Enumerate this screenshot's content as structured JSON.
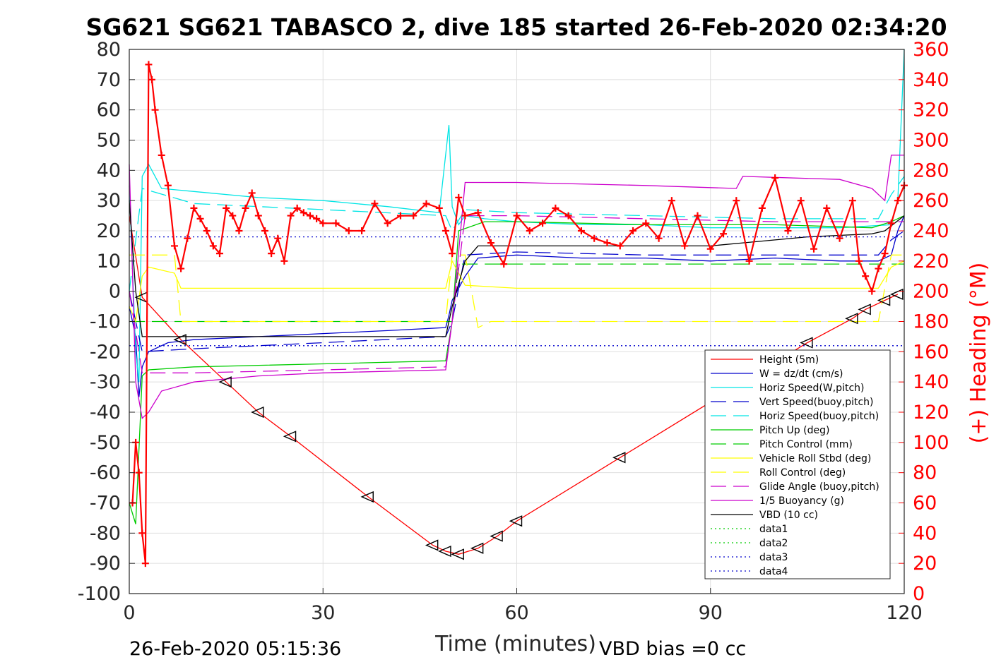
{
  "chart_data": {
    "type": "line",
    "title": "SG621 SG621 TABASCO 2, dive 185 started 26-Feb-2020 02:34:20",
    "xlabel": "Time (minutes)",
    "ylabel": "",
    "ylabel_right": "(+) Heading (°M)",
    "footer_left": "26-Feb-2020 05:15:36",
    "footer_right": "VBD bias =0 cc",
    "xlim": [
      0,
      120
    ],
    "ylim": [
      -100,
      80
    ],
    "ylim_right": [
      0,
      360
    ],
    "x_ticks": [
      "0",
      "30",
      "60",
      "90",
      "120"
    ],
    "y_ticks": [
      "80",
      "70",
      "60",
      "50",
      "40",
      "30",
      "20",
      "10",
      "0",
      "-10",
      "-20",
      "-30",
      "-40",
      "-50",
      "-60",
      "-70",
      "-80",
      "-90",
      "-100"
    ],
    "y_ticks_right": [
      "360",
      "340",
      "320",
      "300",
      "280",
      "260",
      "240",
      "220",
      "200",
      "180",
      "160",
      "140",
      "120",
      "100",
      "80",
      "60",
      "40",
      "20",
      "0"
    ],
    "grid": true,
    "legend_position": "bottom-right",
    "series": [
      {
        "name": "Height (5m)",
        "color": "#ff0000",
        "style": "solid",
        "x": [
          0,
          2,
          8,
          15,
          20,
          25,
          37,
          47,
          49,
          51,
          54,
          57,
          60,
          76,
          105,
          112,
          114,
          117,
          119
        ],
        "y": [
          25,
          -2,
          -16,
          -30,
          -40,
          -48,
          -68,
          -84,
          -86,
          -87,
          -85,
          -81,
          -76,
          -55,
          -17,
          -9,
          -6,
          -3,
          -1
        ]
      },
      {
        "name": "W = dz/dt (cm/s)",
        "color": "#0000cc",
        "style": "solid",
        "x": [
          0,
          1,
          1.5,
          2,
          3,
          6,
          10,
          20,
          30,
          40,
          49,
          49.5,
          50,
          52,
          54,
          60,
          70,
          80,
          90,
          100,
          110,
          116,
          118,
          119,
          120
        ],
        "y": [
          -5,
          -15,
          -35,
          -25,
          -20,
          -17,
          -16,
          -15,
          -14,
          -13,
          -12,
          -8,
          -3,
          5,
          11,
          12,
          11,
          11,
          10,
          11,
          10,
          10,
          12,
          20,
          25
        ]
      },
      {
        "name": "Horiz Speed(W,pitch)",
        "color": "#00e5e5",
        "style": "solid",
        "x": [
          0,
          1,
          1.5,
          2,
          3,
          5,
          10,
          20,
          30,
          40,
          48,
          49.5,
          50,
          51,
          52,
          55,
          60,
          70,
          80,
          90,
          100,
          110,
          118,
          119,
          120
        ],
        "y": [
          35,
          -20,
          -30,
          38,
          42,
          34,
          33,
          31,
          30,
          28,
          26,
          55,
          28,
          22,
          25,
          24,
          23,
          22,
          22,
          21,
          21,
          21,
          22,
          30,
          80
        ]
      },
      {
        "name": "Vert Speed(buoy,pitch)",
        "color": "#0000cc",
        "style": "dashed",
        "x": [
          0,
          2,
          10,
          30,
          49,
          50,
          52,
          60,
          80,
          100,
          116,
          118,
          120
        ],
        "y": [
          0,
          -20,
          -19,
          -17,
          -15,
          -10,
          12,
          13,
          12,
          12,
          12,
          17,
          20
        ]
      },
      {
        "name": "Horiz Speed(buoy,pitch)",
        "color": "#00e5e5",
        "style": "dashed",
        "x": [
          0,
          2,
          10,
          30,
          49,
          50,
          52,
          60,
          80,
          100,
          116,
          118,
          120
        ],
        "y": [
          0,
          34,
          29,
          27,
          25,
          20,
          27,
          26,
          25,
          24,
          24,
          32,
          38
        ]
      },
      {
        "name": "Pitch Up (deg)",
        "color": "#00cc00",
        "style": "solid",
        "x": [
          0,
          1,
          2,
          3,
          10,
          30,
          49,
          50,
          51,
          55,
          60,
          80,
          100,
          115,
          118,
          120
        ],
        "y": [
          -70,
          -77,
          -28,
          -26,
          -25,
          -24,
          -23,
          -10,
          20,
          23,
          23,
          22,
          22,
          21,
          23,
          25
        ]
      },
      {
        "name": "Pitch Control (mm)",
        "color": "#00cc00",
        "style": "dashed",
        "x": [
          0,
          49,
          50,
          51,
          120
        ],
        "y": [
          -10,
          -10,
          -10,
          9,
          9
        ]
      },
      {
        "name": "Vehicle Roll Stbd (deg)",
        "color": "#ffff00",
        "style": "solid",
        "x": [
          0,
          1,
          2,
          3,
          7,
          8,
          10,
          30,
          49,
          50,
          52,
          60,
          80,
          100,
          116,
          118,
          120
        ],
        "y": [
          -5,
          -10,
          5,
          8,
          6,
          1,
          1,
          1,
          1,
          10,
          2,
          1,
          1,
          1,
          1,
          8,
          10
        ]
      },
      {
        "name": "Roll Control (deg)",
        "color": "#ffff00",
        "style": "dashed",
        "x": [
          0,
          2,
          7,
          8,
          49,
          50,
          52,
          54,
          56,
          60,
          80,
          100,
          116,
          118,
          120
        ],
        "y": [
          12,
          12,
          12,
          -10,
          -10,
          12,
          12,
          -12,
          -10,
          -10,
          -10,
          -10,
          -10,
          12,
          12
        ]
      },
      {
        "name": "Glide Angle (buoy,pitch)",
        "color": "#cc00cc",
        "style": "dashed",
        "x": [
          0,
          2,
          10,
          30,
          49,
          50,
          52,
          60,
          80,
          100,
          116,
          118,
          120
        ],
        "y": [
          0,
          -27,
          -27,
          -26,
          -25,
          -10,
          25,
          25,
          24,
          23,
          23,
          23,
          23
        ]
      },
      {
        "name": "1/5 Buoyancy (g)",
        "color": "#cc00cc",
        "style": "solid",
        "x": [
          0,
          1,
          2,
          3,
          5,
          10,
          20,
          30,
          49,
          50,
          52,
          60,
          80,
          94,
          95,
          110,
          115,
          117,
          118,
          120
        ],
        "y": [
          42,
          -30,
          -42,
          -40,
          -33,
          -30,
          -28,
          -27,
          -26,
          -10,
          36,
          36,
          35,
          34,
          38,
          37,
          34,
          30,
          45,
          45
        ]
      },
      {
        "name": "VBD (10 cc)",
        "color": "#000000",
        "style": "solid",
        "x": [
          0,
          1,
          2,
          49,
          50,
          52,
          54,
          60,
          90,
          95,
          105,
          115,
          117,
          120
        ],
        "y": [
          30,
          0,
          -15,
          -15,
          -5,
          10,
          15,
          15,
          15,
          16,
          18,
          19,
          20,
          25
        ]
      },
      {
        "name": "data1",
        "color": "#00cc00",
        "style": "dotted",
        "x": [],
        "y": []
      },
      {
        "name": "data2",
        "color": "#00cc00",
        "style": "dotted",
        "x": [],
        "y": []
      },
      {
        "name": "data3",
        "color": "#0000cc",
        "style": "dotted",
        "x": [
          0,
          120
        ],
        "y": [
          18,
          18
        ]
      },
      {
        "name": "data4",
        "color": "#0000cc",
        "style": "dotted",
        "x": [
          0,
          120
        ],
        "y": [
          -18,
          -18
        ]
      }
    ],
    "heading_series": {
      "color": "#ff0000",
      "marker": "+",
      "x": [
        0.5,
        1,
        1.5,
        2,
        2.5,
        3,
        3.5,
        4,
        5,
        6,
        7,
        8,
        9,
        10,
        11,
        12,
        13,
        14,
        15,
        16,
        17,
        18,
        19,
        20,
        21,
        22,
        23,
        24,
        25,
        26,
        27,
        28,
        29,
        30,
        32,
        34,
        36,
        38,
        40,
        42,
        44,
        46,
        48,
        49,
        50,
        51,
        52,
        54,
        56,
        58,
        60,
        62,
        64,
        66,
        68,
        70,
        72,
        74,
        76,
        78,
        80,
        82,
        84,
        86,
        88,
        90,
        92,
        94,
        96,
        98,
        100,
        102,
        104,
        106,
        108,
        110,
        112,
        113,
        114,
        115,
        116,
        117,
        118,
        119,
        120
      ],
      "y": [
        60,
        100,
        80,
        40,
        20,
        350,
        340,
        320,
        290,
        270,
        230,
        215,
        235,
        255,
        248,
        240,
        230,
        225,
        255,
        250,
        240,
        255,
        265,
        250,
        240,
        225,
        235,
        220,
        250,
        255,
        252,
        250,
        248,
        245,
        245,
        240,
        240,
        258,
        245,
        250,
        250,
        258,
        255,
        240,
        225,
        262,
        250,
        252,
        232,
        218,
        250,
        240,
        245,
        255,
        250,
        240,
        235,
        232,
        230,
        240,
        245,
        235,
        260,
        230,
        250,
        228,
        238,
        260,
        220,
        255,
        275,
        240,
        260,
        228,
        255,
        235,
        260,
        220,
        210,
        200,
        215,
        225,
        245,
        260,
        270
      ]
    }
  }
}
